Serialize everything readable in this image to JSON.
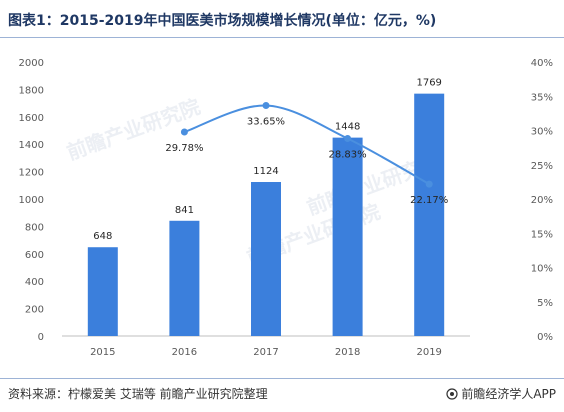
{
  "title": "图表1：2015-2019年中国医美市场规模增长情况(单位：亿元，%)",
  "source": "资料来源：柠檬爱美 艾瑞等 前瞻产业研究院整理",
  "brand": "前瞻经济学人APP",
  "watermark": "前瞻产业研究院",
  "colors": {
    "bar": "#3b7fdc",
    "line": "#4a8fdf",
    "text": "#1f3864"
  },
  "chart_data": {
    "type": "bar",
    "categories": [
      "2015",
      "2016",
      "2017",
      "2018",
      "2019"
    ],
    "series": [
      {
        "values": [
          648,
          841,
          1124,
          1448,
          1769
        ],
        "axis": "left",
        "kind": "bar"
      },
      {
        "values": [
          null,
          29.78,
          33.65,
          28.83,
          22.17
        ],
        "axis": "right",
        "kind": "line",
        "smooth": true
      }
    ],
    "yleft_ticks": [
      "0",
      "200",
      "400",
      "600",
      "800",
      "1000",
      "1200",
      "1400",
      "1600",
      "1800",
      "2000"
    ],
    "yright_ticks": [
      "0%",
      "5%",
      "10%",
      "15%",
      "20%",
      "25%",
      "30%",
      "35%",
      "40%"
    ],
    "ylim_left": [
      0,
      2000
    ],
    "ylim_right": [
      0,
      40
    ],
    "bar_labels": [
      "648",
      "841",
      "1124",
      "1448",
      "1769"
    ],
    "line_labels": [
      "",
      "29.78%",
      "33.65%",
      "28.83%",
      "22.17%"
    ],
    "grid": false
  }
}
